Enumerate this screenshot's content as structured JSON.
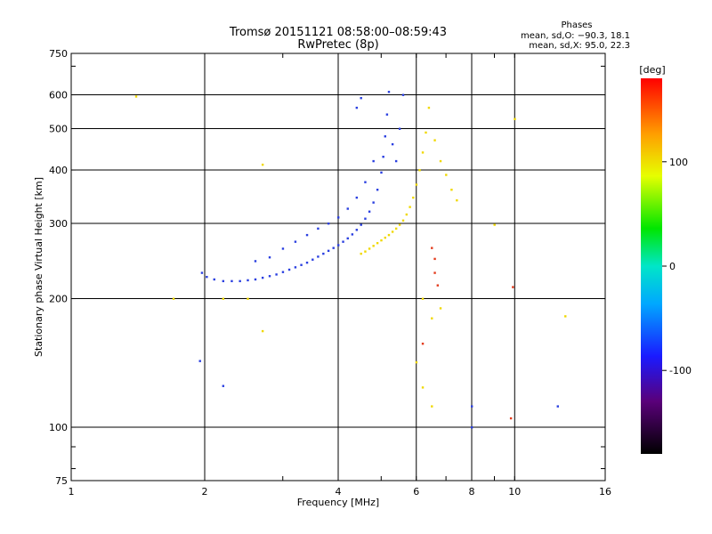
{
  "chart_data": {
    "type": "scatter",
    "title": "Tromsø 20151121 08:58:00–08:59:43",
    "subtitle": "RwPretec (8p)",
    "side_info": {
      "heading": "Phases",
      "line_o": "mean, sd,O: −90.3, 18.1",
      "line_x": "mean, sd,X:  95.0, 22.3"
    },
    "xlabel": "Frequency [MHz]",
    "ylabel": "Stationary phase Virtual Height [km]",
    "x_scale": "log",
    "y_scale": "log",
    "xlim": [
      1,
      16
    ],
    "ylim": [
      75,
      750
    ],
    "x_ticks": [
      "1",
      "2",
      "4",
      "6",
      "8",
      "10",
      "16"
    ],
    "y_ticks": [
      "75",
      "100",
      "200",
      "300",
      "400",
      "500",
      "600",
      "750"
    ],
    "grid": true,
    "colorbar": {
      "label": "[deg]",
      "range": [
        -180,
        180
      ],
      "ticks": [
        "100",
        "0",
        "-100"
      ]
    },
    "series": [
      {
        "mode": "O",
        "phase_deg": -90,
        "color": "#2a3fe0",
        "points": [
          [
            1.97,
            230
          ],
          [
            2.02,
            225
          ],
          [
            2.1,
            222
          ],
          [
            2.2,
            220
          ],
          [
            2.3,
            220
          ],
          [
            2.4,
            220
          ],
          [
            2.5,
            221
          ],
          [
            2.6,
            222
          ],
          [
            2.7,
            224
          ],
          [
            2.8,
            226
          ],
          [
            2.9,
            228
          ],
          [
            3.0,
            231
          ],
          [
            3.1,
            234
          ],
          [
            3.2,
            237
          ],
          [
            3.3,
            240
          ],
          [
            3.4,
            243
          ],
          [
            3.5,
            247
          ],
          [
            3.6,
            251
          ],
          [
            3.7,
            255
          ],
          [
            3.8,
            259
          ],
          [
            3.9,
            263
          ],
          [
            4.0,
            267
          ],
          [
            4.1,
            272
          ],
          [
            4.2,
            277
          ],
          [
            4.3,
            283
          ],
          [
            4.4,
            290
          ],
          [
            4.5,
            298
          ],
          [
            4.6,
            308
          ],
          [
            4.7,
            320
          ],
          [
            4.8,
            336
          ],
          [
            4.9,
            360
          ],
          [
            5.0,
            395
          ],
          [
            5.05,
            430
          ],
          [
            5.1,
            480
          ],
          [
            5.15,
            540
          ],
          [
            5.2,
            610
          ],
          [
            5.3,
            460
          ],
          [
            5.4,
            420
          ],
          [
            5.5,
            500
          ],
          [
            5.6,
            600
          ],
          [
            4.4,
            560
          ],
          [
            4.5,
            590
          ],
          [
            2.6,
            245
          ],
          [
            2.8,
            250
          ],
          [
            3.0,
            262
          ],
          [
            3.2,
            272
          ],
          [
            3.4,
            282
          ],
          [
            3.6,
            292
          ],
          [
            3.8,
            300
          ],
          [
            4.0,
            310
          ],
          [
            4.2,
            325
          ],
          [
            4.4,
            345
          ],
          [
            4.6,
            375
          ],
          [
            4.8,
            420
          ],
          [
            1.95,
            143
          ],
          [
            2.2,
            125
          ],
          [
            8.0,
            112
          ],
          [
            8.0,
            100
          ],
          [
            12.5,
            112
          ]
        ]
      },
      {
        "mode": "X",
        "phase_deg": 95,
        "color": "#f0d800",
        "points": [
          [
            4.5,
            255
          ],
          [
            4.6,
            258
          ],
          [
            4.7,
            262
          ],
          [
            4.8,
            266
          ],
          [
            4.9,
            270
          ],
          [
            5.0,
            274
          ],
          [
            5.1,
            278
          ],
          [
            5.2,
            282
          ],
          [
            5.3,
            287
          ],
          [
            5.4,
            292
          ],
          [
            5.5,
            298
          ],
          [
            5.6,
            305
          ],
          [
            5.7,
            315
          ],
          [
            5.8,
            328
          ],
          [
            5.9,
            345
          ],
          [
            6.0,
            370
          ],
          [
            6.1,
            400
          ],
          [
            6.2,
            440
          ],
          [
            6.3,
            490
          ],
          [
            6.4,
            560
          ],
          [
            6.6,
            470
          ],
          [
            6.8,
            420
          ],
          [
            7.0,
            390
          ],
          [
            7.2,
            360
          ],
          [
            7.4,
            340
          ],
          [
            6.2,
            200
          ],
          [
            6.5,
            180
          ],
          [
            6.8,
            190
          ],
          [
            6.0,
            142
          ],
          [
            6.2,
            124
          ],
          [
            6.5,
            112
          ],
          [
            2.2,
            200
          ],
          [
            2.5,
            200
          ],
          [
            2.7,
            168
          ],
          [
            2.7,
            412
          ],
          [
            1.4,
            595
          ],
          [
            1.7,
            200
          ],
          [
            9.0,
            298
          ],
          [
            10.0,
            527
          ],
          [
            13.0,
            182
          ]
        ]
      },
      {
        "mode": "noise",
        "phase_deg": 160,
        "color": "#e33b1c",
        "points": [
          [
            6.5,
            263
          ],
          [
            6.6,
            248
          ],
          [
            6.6,
            230
          ],
          [
            6.7,
            215
          ],
          [
            6.2,
            157
          ],
          [
            9.8,
            105
          ],
          [
            9.9,
            213
          ]
        ]
      }
    ]
  }
}
